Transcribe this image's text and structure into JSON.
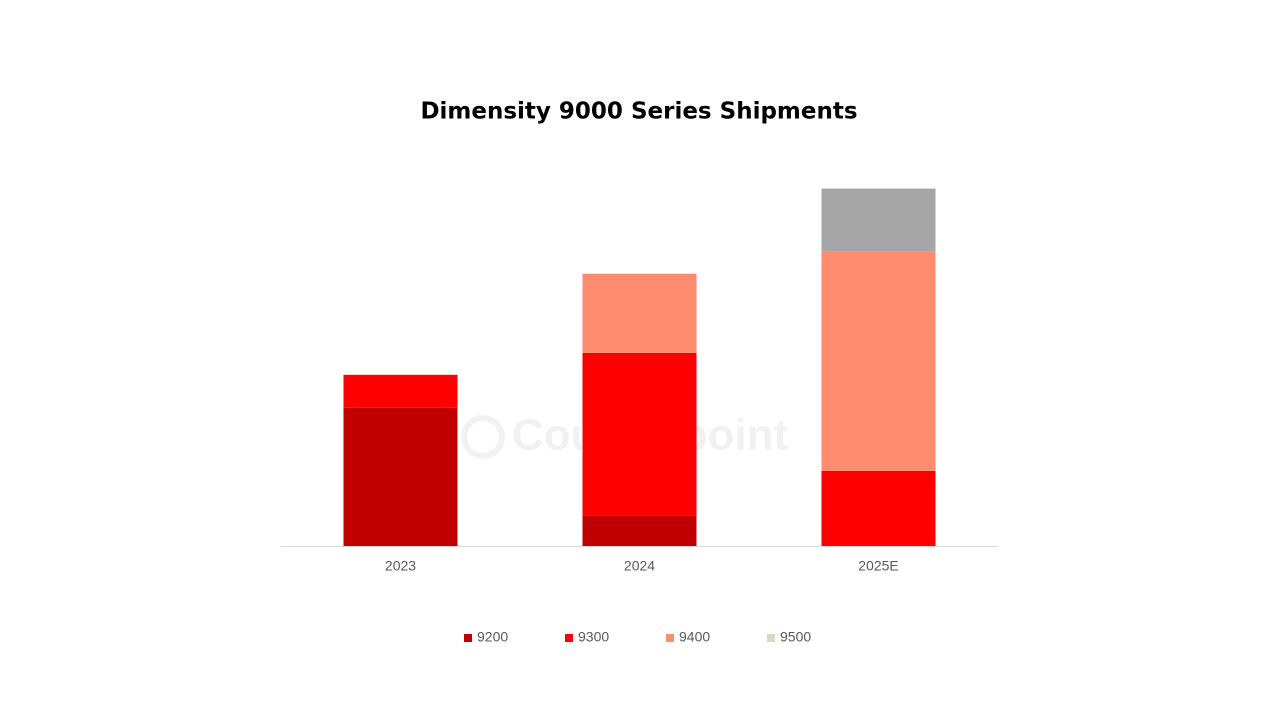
{
  "chart_data": {
    "type": "stacked_bar",
    "title": "Dimensity 9000 Series Shipments",
    "watermark": "Counterpoint",
    "categories": [
      "2023",
      "2024",
      "2025E"
    ],
    "series": [
      {
        "name": "9200",
        "color": "#c00000",
        "values": [
          138,
          30,
          0
        ]
      },
      {
        "name": "9300",
        "color": "#ff0000",
        "values": [
          33,
          163,
          75
        ]
      },
      {
        "name": "9400",
        "color": "#ff8c70",
        "values": [
          0,
          79,
          219
        ]
      },
      {
        "name": "9500",
        "color": "#a6a6a6",
        "legend_color": "#ddd5c5",
        "values": [
          0,
          0,
          63
        ]
      }
    ],
    "legend": "bottom"
  }
}
